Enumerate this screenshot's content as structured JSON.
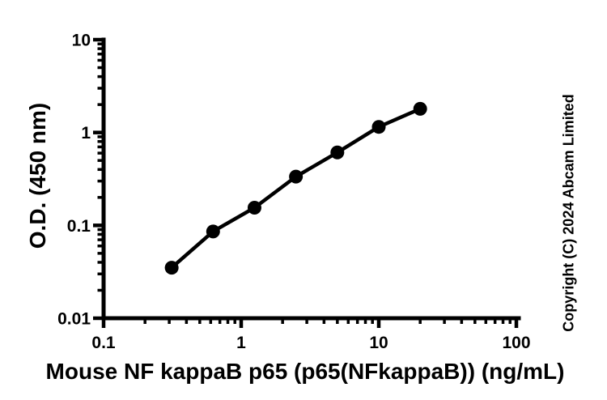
{
  "figure": {
    "background_color": "#ffffff",
    "ink_color": "#000000"
  },
  "chart_data": {
    "type": "line",
    "xlabel": "Mouse NF kappaB p65 (p65(NFkappaB)) (ng/mL)",
    "ylabel": "O.D. (450 nm)",
    "xscale": "log",
    "yscale": "log",
    "xlim": [
      0.1,
      100
    ],
    "ylim": [
      0.01,
      10
    ],
    "x_tick_labels": [
      "0.1",
      "1",
      "10",
      "100"
    ],
    "y_tick_labels": [
      "0.01",
      "0.1",
      "1",
      "10"
    ],
    "grid": false,
    "legend_position": "none",
    "series": [
      {
        "marker": "filled-circle",
        "color": "#000000",
        "x": [
          0.3125,
          0.625,
          1.25,
          2.5,
          5,
          10,
          20
        ],
        "y": [
          0.035,
          0.086,
          0.155,
          0.335,
          0.61,
          1.15,
          1.8
        ]
      }
    ]
  },
  "annotations": {
    "copyright": "Copyright (C) 2024 Abcam Limited"
  }
}
